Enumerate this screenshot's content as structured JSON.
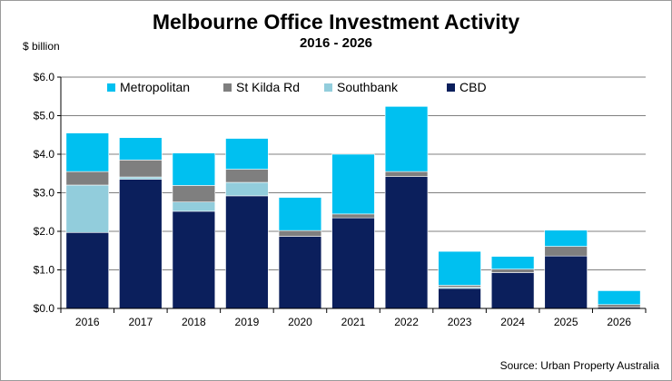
{
  "chart_data": {
    "type": "bar",
    "stacked": true,
    "title": "Melbourne Office Investment Activity",
    "subtitle": "2016 - 2026",
    "ylabel": "$ billion",
    "source": "Source: Urban Property Australia",
    "categories": [
      "2016",
      "2017",
      "2018",
      "2019",
      "2020",
      "2021",
      "2022",
      "2023",
      "2024",
      "2025",
      "2026"
    ],
    "ylim": [
      0,
      6
    ],
    "yticks": [
      "$0.0",
      "$1.0",
      "$2.0",
      "$3.0",
      "$4.0",
      "$5.0",
      "$6.0"
    ],
    "grid": true,
    "legend_position": "top-left",
    "series": [
      {
        "name": "CBD",
        "color": "#0b1f5c",
        "values": [
          1.97,
          3.35,
          2.52,
          2.92,
          1.87,
          2.35,
          3.42,
          0.52,
          0.93,
          1.36,
          0.03
        ]
      },
      {
        "name": "Southbank",
        "color": "#92cddc",
        "values": [
          1.23,
          0.06,
          0.24,
          0.35,
          0.0,
          0.0,
          0.0,
          0.03,
          0.0,
          0.0,
          0.0
        ]
      },
      {
        "name": "St Kilda Rd",
        "color": "#7f7f7f",
        "values": [
          0.35,
          0.44,
          0.43,
          0.34,
          0.15,
          0.1,
          0.13,
          0.05,
          0.09,
          0.25,
          0.07
        ]
      },
      {
        "name": "Metropolitan",
        "color": "#00c0f0",
        "values": [
          1.0,
          0.58,
          0.84,
          0.8,
          0.86,
          1.55,
          1.69,
          0.88,
          0.33,
          0.42,
          0.36
        ]
      }
    ],
    "legend_order": [
      "Metropolitan",
      "St Kilda Rd",
      "Southbank",
      "CBD"
    ]
  }
}
